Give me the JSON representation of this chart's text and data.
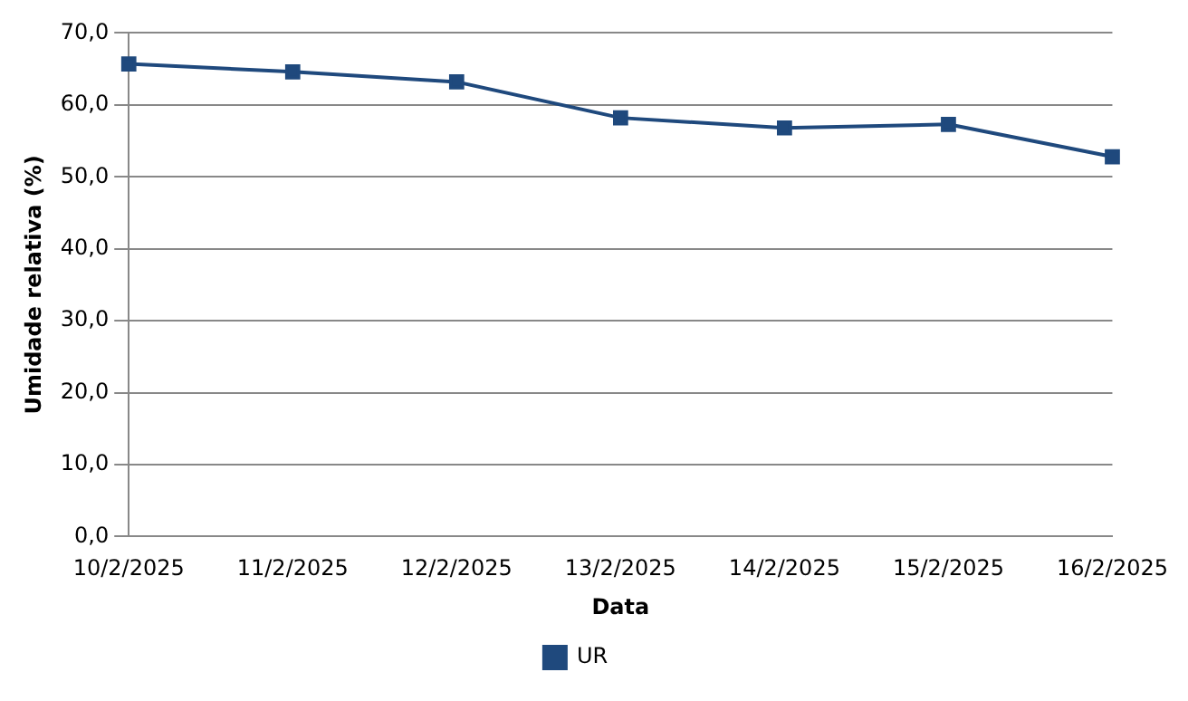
{
  "chart_data": {
    "type": "line",
    "xlabel": "Data",
    "ylabel": "Umidade relativa (%)",
    "categories": [
      "10/2/2025",
      "11/2/2025",
      "12/2/2025",
      "13/2/2025",
      "14/2/2025",
      "15/2/2025",
      "16/2/2025"
    ],
    "series": [
      {
        "name": "UR",
        "color": "#1f497d",
        "values": [
          65.7,
          64.6,
          63.2,
          58.2,
          56.8,
          57.3,
          52.8
        ]
      }
    ],
    "ylim": [
      0,
      70
    ],
    "yticks": [
      {
        "value": 0,
        "label": "0,0"
      },
      {
        "value": 10,
        "label": "10,0"
      },
      {
        "value": 20,
        "label": "20,0"
      },
      {
        "value": 30,
        "label": "30,0"
      },
      {
        "value": 40,
        "label": "40,0"
      },
      {
        "value": 50,
        "label": "50,0"
      },
      {
        "value": 60,
        "label": "60,0"
      },
      {
        "value": 70,
        "label": "70,0"
      }
    ],
    "grid": "y",
    "legend": "bottom",
    "marker": "square",
    "line_style": "solid"
  }
}
